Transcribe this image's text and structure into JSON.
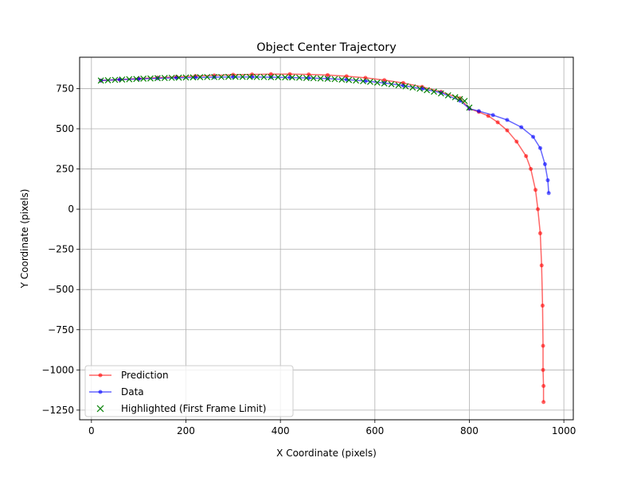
{
  "chart_data": {
    "type": "line",
    "title": "Object Center Trajectory",
    "xlabel": "X Coordinate (pixels)",
    "ylabel": "Y Coordinate (pixels)",
    "xlim": [
      -25,
      1020
    ],
    "ylim": [
      -1310,
      945
    ],
    "xticks": [
      0,
      200,
      400,
      600,
      800,
      1000
    ],
    "yticks": [
      -1250,
      -1000,
      -750,
      -500,
      -250,
      0,
      250,
      500,
      750
    ],
    "grid": true,
    "legend_position": "lower-left",
    "series": [
      {
        "name": "Prediction",
        "color": "#ff0000",
        "marker": "dot",
        "points": [
          [
            20,
            800
          ],
          [
            60,
            806
          ],
          [
            100,
            812
          ],
          [
            140,
            818
          ],
          [
            180,
            823
          ],
          [
            220,
            828
          ],
          [
            260,
            832
          ],
          [
            300,
            836
          ],
          [
            340,
            838
          ],
          [
            380,
            840
          ],
          [
            420,
            840
          ],
          [
            460,
            838
          ],
          [
            500,
            834
          ],
          [
            540,
            827
          ],
          [
            580,
            817
          ],
          [
            620,
            803
          ],
          [
            660,
            785
          ],
          [
            700,
            761
          ],
          [
            740,
            730
          ],
          [
            780,
            690
          ],
          [
            800,
            625
          ],
          [
            820,
            605
          ],
          [
            840,
            580
          ],
          [
            860,
            540
          ],
          [
            880,
            490
          ],
          [
            900,
            420
          ],
          [
            920,
            330
          ],
          [
            930,
            250
          ],
          [
            940,
            120
          ],
          [
            945,
            0
          ],
          [
            950,
            -150
          ],
          [
            953,
            -350
          ],
          [
            955,
            -600
          ],
          [
            956,
            -850
          ],
          [
            956,
            -1000
          ],
          [
            957,
            -1100
          ],
          [
            957,
            -1200
          ]
        ]
      },
      {
        "name": "Data",
        "color": "#0000ff",
        "marker": "dot",
        "points": [
          [
            20,
            800
          ],
          [
            60,
            806
          ],
          [
            100,
            810
          ],
          [
            140,
            814
          ],
          [
            180,
            817
          ],
          [
            220,
            819
          ],
          [
            260,
            821
          ],
          [
            300,
            822
          ],
          [
            340,
            822
          ],
          [
            380,
            821
          ],
          [
            420,
            819
          ],
          [
            460,
            816
          ],
          [
            500,
            812
          ],
          [
            540,
            806
          ],
          [
            580,
            797
          ],
          [
            620,
            785
          ],
          [
            660,
            769
          ],
          [
            700,
            749
          ],
          [
            740,
            724
          ],
          [
            780,
            675
          ],
          [
            800,
            625
          ],
          [
            820,
            610
          ],
          [
            850,
            585
          ],
          [
            880,
            555
          ],
          [
            910,
            510
          ],
          [
            935,
            450
          ],
          [
            950,
            380
          ],
          [
            960,
            280
          ],
          [
            966,
            180
          ],
          [
            968,
            100
          ]
        ]
      },
      {
        "name": "Highlighted (First Frame Limit)",
        "color": "#008000",
        "marker": "x",
        "points": [
          [
            20,
            800
          ],
          [
            35,
            802
          ],
          [
            50,
            804
          ],
          [
            65,
            806
          ],
          [
            80,
            808
          ],
          [
            95,
            810
          ],
          [
            110,
            812
          ],
          [
            125,
            813
          ],
          [
            140,
            815
          ],
          [
            155,
            816
          ],
          [
            170,
            817
          ],
          [
            185,
            818
          ],
          [
            200,
            819
          ],
          [
            215,
            820
          ],
          [
            230,
            821
          ],
          [
            245,
            822
          ],
          [
            260,
            822
          ],
          [
            275,
            822
          ],
          [
            290,
            823
          ],
          [
            305,
            823
          ],
          [
            320,
            823
          ],
          [
            335,
            823
          ],
          [
            350,
            822
          ],
          [
            365,
            822
          ],
          [
            380,
            821
          ],
          [
            395,
            821
          ],
          [
            410,
            820
          ],
          [
            425,
            819
          ],
          [
            440,
            818
          ],
          [
            455,
            816
          ],
          [
            470,
            815
          ],
          [
            485,
            813
          ],
          [
            500,
            811
          ],
          [
            515,
            809
          ],
          [
            530,
            806
          ],
          [
            545,
            803
          ],
          [
            560,
            800
          ],
          [
            575,
            796
          ],
          [
            590,
            792
          ],
          [
            605,
            787
          ],
          [
            620,
            782
          ],
          [
            635,
            777
          ],
          [
            650,
            771
          ],
          [
            665,
            764
          ],
          [
            680,
            757
          ],
          [
            695,
            749
          ],
          [
            710,
            740
          ],
          [
            725,
            731
          ],
          [
            740,
            720
          ],
          [
            755,
            708
          ],
          [
            770,
            696
          ],
          [
            780,
            685
          ],
          [
            790,
            673
          ],
          [
            800,
            632
          ]
        ]
      }
    ]
  }
}
